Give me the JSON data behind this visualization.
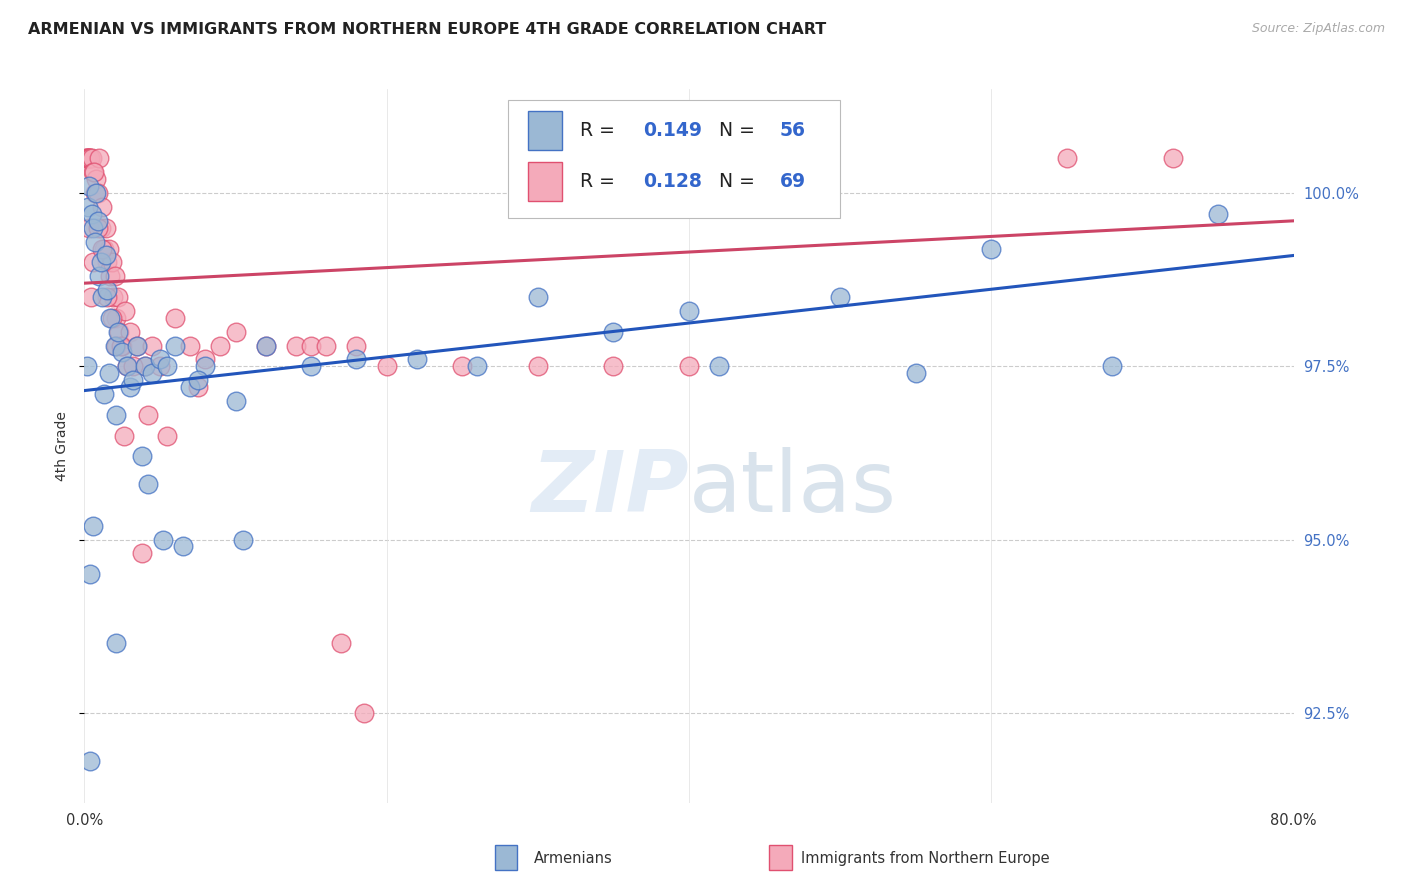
{
  "title": "ARMENIAN VS IMMIGRANTS FROM NORTHERN EUROPE 4TH GRADE CORRELATION CHART",
  "source": "Source: ZipAtlas.com",
  "ylabel": "4th Grade",
  "watermark": "ZIPatlas",
  "legend_R_blue": "0.149",
  "legend_N_blue": "56",
  "legend_R_pink": "0.128",
  "legend_N_pink": "69",
  "xlim": [
    0.0,
    80.0
  ],
  "ylim": [
    91.2,
    101.5
  ],
  "yticks": [
    92.5,
    95.0,
    97.5,
    100.0
  ],
  "ytick_labels": [
    "92.5%",
    "95.0%",
    "97.5%",
    "100.0%"
  ],
  "armenians_color": "#9BB8D4",
  "armenians_edge_color": "#4472C4",
  "immigrants_color": "#F4AABA",
  "immigrants_edge_color": "#E05070",
  "armenians_line_color": "#2255BB",
  "immigrants_line_color": "#CC4466",
  "blue_scatter_x": [
    0.15,
    0.25,
    0.3,
    0.5,
    0.6,
    0.7,
    0.8,
    0.9,
    1.0,
    1.1,
    1.2,
    1.4,
    1.5,
    1.7,
    2.0,
    2.2,
    2.5,
    2.8,
    3.0,
    3.5,
    4.0,
    4.5,
    5.0,
    5.5,
    6.0,
    7.0,
    8.0,
    10.0,
    12.0,
    15.0,
    18.0,
    22.0,
    26.0,
    30.0,
    35.0,
    40.0,
    42.0,
    50.0,
    55.0,
    60.0,
    68.0,
    75.0,
    2.1,
    3.2,
    6.5,
    0.4,
    1.3,
    3.8,
    4.2,
    0.6,
    2.1,
    5.2,
    7.5,
    10.5,
    0.35,
    1.6
  ],
  "blue_scatter_y": [
    97.5,
    99.8,
    100.1,
    99.7,
    99.5,
    99.3,
    100.0,
    99.6,
    98.8,
    99.0,
    98.5,
    99.1,
    98.6,
    98.2,
    97.8,
    98.0,
    97.7,
    97.5,
    97.2,
    97.8,
    97.5,
    97.4,
    97.6,
    97.5,
    97.8,
    97.2,
    97.5,
    97.0,
    97.8,
    97.5,
    97.6,
    97.6,
    97.5,
    98.5,
    98.0,
    98.3,
    97.5,
    98.5,
    97.4,
    99.2,
    97.5,
    99.7,
    96.8,
    97.3,
    94.9,
    94.5,
    97.1,
    96.2,
    95.8,
    95.2,
    93.5,
    95.0,
    97.3,
    95.0,
    91.8,
    97.4
  ],
  "pink_scatter_x": [
    0.1,
    0.15,
    0.2,
    0.25,
    0.3,
    0.35,
    0.4,
    0.5,
    0.6,
    0.7,
    0.8,
    0.9,
    1.0,
    1.1,
    1.2,
    1.3,
    1.4,
    1.5,
    1.6,
    1.7,
    1.8,
    1.9,
    2.0,
    2.1,
    2.2,
    2.3,
    2.5,
    2.7,
    3.0,
    3.5,
    4.0,
    4.5,
    5.0,
    6.0,
    7.0,
    8.0,
    9.0,
    10.0,
    12.0,
    14.0,
    15.0,
    16.0,
    18.0,
    20.0,
    25.0,
    30.0,
    35.0,
    40.0,
    0.3,
    0.6,
    0.9,
    1.2,
    1.5,
    1.8,
    2.1,
    2.4,
    2.8,
    3.2,
    4.2,
    5.5,
    7.5,
    65.0,
    72.0,
    17.0,
    18.5,
    0.45,
    0.65,
    2.6,
    3.8
  ],
  "pink_scatter_y": [
    100.5,
    100.5,
    100.5,
    100.5,
    100.5,
    100.5,
    100.5,
    100.5,
    100.3,
    100.0,
    100.2,
    100.0,
    100.5,
    99.5,
    99.8,
    99.2,
    99.5,
    99.0,
    99.2,
    98.8,
    99.0,
    98.5,
    98.8,
    98.2,
    98.5,
    98.0,
    97.8,
    98.3,
    98.0,
    97.8,
    97.5,
    97.8,
    97.5,
    98.2,
    97.8,
    97.6,
    97.8,
    98.0,
    97.8,
    97.8,
    97.8,
    97.8,
    97.8,
    97.5,
    97.5,
    97.5,
    97.5,
    97.5,
    99.5,
    99.0,
    99.5,
    99.2,
    98.5,
    98.2,
    97.8,
    97.8,
    97.5,
    97.5,
    96.8,
    96.5,
    97.2,
    100.5,
    100.5,
    93.5,
    92.5,
    98.5,
    100.3,
    96.5,
    94.8
  ],
  "blue_trendline_x": [
    0.0,
    80.0
  ],
  "blue_trendline_y": [
    97.15,
    99.1
  ],
  "pink_trendline_x": [
    0.0,
    80.0
  ],
  "pink_trendline_y": [
    98.7,
    99.6
  ],
  "background_color": "#ffffff",
  "grid_color": "#cccccc",
  "title_fontsize": 11.5,
  "axis_label_fontsize": 10,
  "tick_fontsize": 10.5,
  "scatter_size": 180
}
